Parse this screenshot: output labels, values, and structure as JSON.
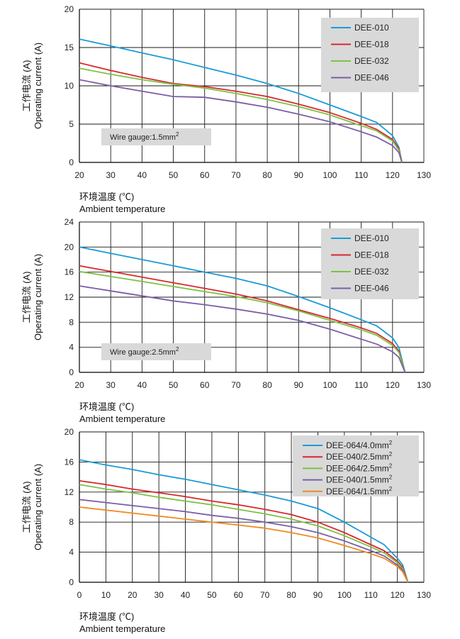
{
  "chart_data": [
    {
      "type": "line",
      "xlabel_cn": "环境温度 (℃)",
      "xlabel_en": "Ambient temperature",
      "ylabel_cn": "工作电流 (A)",
      "ylabel_en": "Operating current (A)",
      "xlim": [
        20,
        130
      ],
      "xticks": [
        20,
        30,
        40,
        50,
        60,
        70,
        80,
        90,
        100,
        110,
        120,
        130
      ],
      "ylim": [
        0,
        20
      ],
      "yticks": [
        0,
        5,
        10,
        15,
        20
      ],
      "grid": true,
      "legend_position": "top-right",
      "annotation": {
        "text": "Wire gauge:1.5mm",
        "sup": "2"
      },
      "series": [
        {
          "name": "DEE-010",
          "color": "#1a9bd7",
          "x": [
            20,
            30,
            40,
            50,
            60,
            70,
            80,
            90,
            100,
            110,
            115,
            120,
            122,
            123
          ],
          "y": [
            16.1,
            15.2,
            14.3,
            13.4,
            12.4,
            11.4,
            10.3,
            9.0,
            7.5,
            6.0,
            5.2,
            3.5,
            2.0,
            0
          ]
        },
        {
          "name": "DEE-018",
          "color": "#d7282f",
          "x": [
            20,
            30,
            40,
            50,
            60,
            70,
            80,
            90,
            100,
            110,
            115,
            120,
            122,
            123
          ],
          "y": [
            13.0,
            12.0,
            11.1,
            10.3,
            9.9,
            9.3,
            8.6,
            7.6,
            6.5,
            5.1,
            4.3,
            3.0,
            1.8,
            0
          ]
        },
        {
          "name": "DEE-032",
          "color": "#7dc242",
          "x": [
            20,
            30,
            40,
            50,
            60,
            70,
            80,
            90,
            100,
            110,
            115,
            120,
            122,
            123
          ],
          "y": [
            12.3,
            11.5,
            10.8,
            10.2,
            9.7,
            9.0,
            8.2,
            7.3,
            6.2,
            4.8,
            4.1,
            2.8,
            1.6,
            0
          ]
        },
        {
          "name": "DEE-046",
          "color": "#7b5ea7",
          "x": [
            20,
            30,
            40,
            50,
            60,
            70,
            80,
            90,
            100,
            110,
            115,
            120,
            122,
            123
          ],
          "y": [
            10.8,
            10.0,
            9.3,
            8.6,
            8.5,
            7.9,
            7.2,
            6.3,
            5.3,
            4.0,
            3.3,
            2.2,
            1.3,
            0
          ]
        }
      ]
    },
    {
      "type": "line",
      "xlabel_cn": "环境温度 (℃)",
      "xlabel_en": "Ambient temperature",
      "ylabel_cn": "工作电流 (A)",
      "ylabel_en": "Operating current (A)",
      "xlim": [
        20,
        130
      ],
      "xticks": [
        20,
        30,
        40,
        50,
        60,
        70,
        80,
        90,
        100,
        110,
        120,
        130
      ],
      "ylim": [
        0,
        24
      ],
      "yticks": [
        0,
        4,
        8,
        12,
        16,
        20,
        24
      ],
      "grid": true,
      "legend_position": "top-right",
      "annotation": {
        "text": "Wire gauge:2.5mm",
        "sup": "2"
      },
      "series": [
        {
          "name": "DEE-010",
          "color": "#1a9bd7",
          "x": [
            20,
            30,
            40,
            50,
            60,
            70,
            80,
            90,
            100,
            110,
            115,
            120,
            122,
            124
          ],
          "y": [
            20.0,
            19.0,
            18.0,
            17.0,
            16.0,
            15.0,
            13.8,
            12.1,
            10.3,
            8.4,
            7.4,
            5.5,
            4.0,
            0
          ]
        },
        {
          "name": "DEE-018",
          "color": "#d7282f",
          "x": [
            20,
            30,
            40,
            50,
            60,
            70,
            80,
            90,
            100,
            110,
            115,
            120,
            122,
            124
          ],
          "y": [
            17.0,
            16.1,
            15.2,
            14.3,
            13.4,
            12.5,
            11.4,
            10.0,
            8.6,
            7.1,
            6.2,
            4.6,
            3.4,
            0
          ]
        },
        {
          "name": "DEE-032",
          "color": "#7dc242",
          "x": [
            20,
            30,
            40,
            50,
            60,
            70,
            80,
            90,
            100,
            110,
            115,
            120,
            122,
            124
          ],
          "y": [
            16.1,
            15.3,
            14.5,
            13.7,
            12.9,
            12.1,
            11.1,
            9.8,
            8.3,
            6.8,
            5.9,
            4.3,
            3.2,
            0
          ]
        },
        {
          "name": "DEE-046",
          "color": "#7b5ea7",
          "x": [
            20,
            30,
            40,
            50,
            60,
            70,
            80,
            90,
            100,
            110,
            115,
            120,
            122,
            124
          ],
          "y": [
            13.8,
            13.0,
            12.2,
            11.4,
            10.8,
            10.1,
            9.3,
            8.3,
            6.9,
            5.3,
            4.5,
            3.3,
            2.4,
            0
          ]
        }
      ]
    },
    {
      "type": "line",
      "xlabel_cn": "环境温度 (℃)",
      "xlabel_en": "Ambient temperature",
      "ylabel_cn": "工作电流 (A)",
      "ylabel_en": "Operating current (A)",
      "xlim": [
        0,
        130
      ],
      "xticks": [
        0,
        10,
        20,
        30,
        40,
        50,
        60,
        70,
        80,
        90,
        100,
        110,
        120,
        130
      ],
      "ylim": [
        0,
        20
      ],
      "yticks": [
        0,
        4,
        8,
        12,
        16,
        20
      ],
      "grid": true,
      "legend_position": "top-right",
      "series": [
        {
          "name": "DEE-064/4.0mm",
          "sup": "2",
          "color": "#1a9bd7",
          "x": [
            0,
            10,
            20,
            30,
            40,
            50,
            60,
            70,
            80,
            90,
            100,
            110,
            115,
            120,
            122,
            124
          ],
          "y": [
            16.3,
            15.6,
            15.0,
            14.3,
            13.7,
            13.0,
            12.3,
            11.6,
            10.8,
            9.8,
            8.0,
            6.0,
            5.0,
            3.2,
            2.3,
            0
          ]
        },
        {
          "name": "DEE-040/2.5mm",
          "sup": "2",
          "color": "#d7282f",
          "x": [
            0,
            10,
            20,
            30,
            40,
            50,
            60,
            70,
            80,
            90,
            100,
            110,
            115,
            120,
            122,
            124
          ],
          "y": [
            13.5,
            13.0,
            12.4,
            11.9,
            11.4,
            10.8,
            10.3,
            9.7,
            9.0,
            8.0,
            6.6,
            5.0,
            4.2,
            2.8,
            2.0,
            0
          ]
        },
        {
          "name": "DEE-064/2.5mm",
          "sup": "2",
          "color": "#7dc242",
          "x": [
            0,
            10,
            20,
            30,
            40,
            50,
            60,
            70,
            80,
            90,
            100,
            110,
            115,
            120,
            122,
            124
          ],
          "y": [
            13.0,
            12.4,
            11.9,
            11.3,
            10.8,
            10.3,
            9.7,
            9.1,
            8.4,
            7.5,
            6.2,
            4.7,
            3.9,
            2.6,
            1.8,
            0
          ]
        },
        {
          "name": "DEE-040/1.5mm",
          "sup": "2",
          "color": "#7b5ea7",
          "x": [
            0,
            10,
            20,
            30,
            40,
            50,
            60,
            70,
            80,
            90,
            100,
            110,
            115,
            120,
            122,
            124
          ],
          "y": [
            11.0,
            10.6,
            10.2,
            9.8,
            9.4,
            8.9,
            8.5,
            8.0,
            7.4,
            6.6,
            5.5,
            4.2,
            3.5,
            2.3,
            1.6,
            0
          ]
        },
        {
          "name": "DEE-064/1.5mm",
          "sup": "2",
          "color": "#f08a24",
          "x": [
            0,
            10,
            20,
            30,
            40,
            50,
            60,
            70,
            80,
            90,
            100,
            110,
            115,
            120,
            122,
            124
          ],
          "y": [
            10.0,
            9.6,
            9.2,
            8.8,
            8.4,
            8.0,
            7.6,
            7.2,
            6.6,
            5.9,
            4.9,
            3.8,
            3.2,
            2.1,
            1.4,
            0
          ]
        }
      ]
    }
  ]
}
